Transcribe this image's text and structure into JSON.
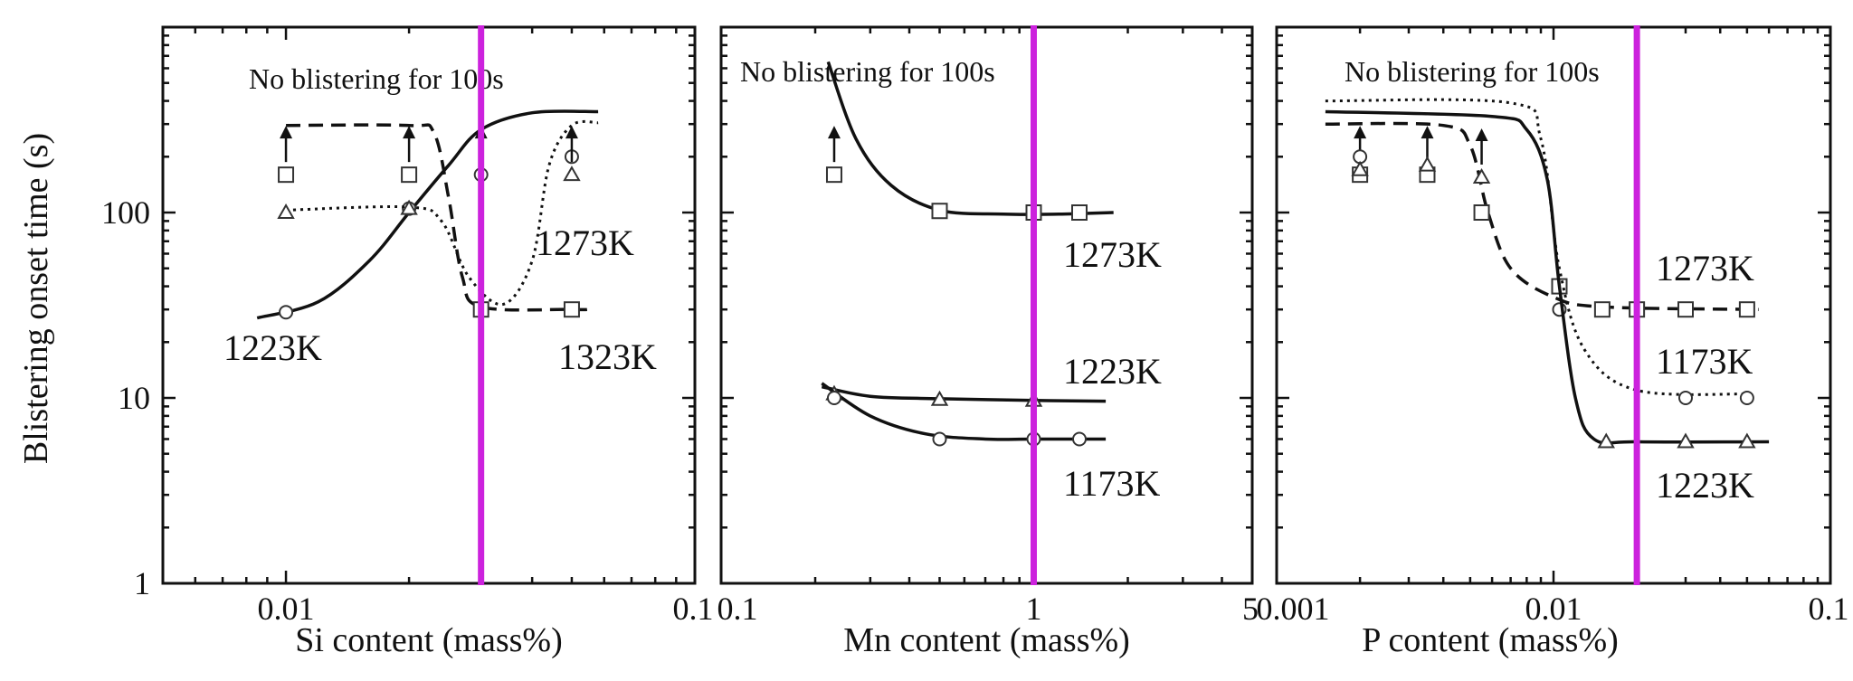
{
  "figure": {
    "y_axis_label": "Blistering onset time (s)",
    "y_ticks": [
      "1",
      "10",
      "100"
    ]
  },
  "chart_data": [
    {
      "type": "line",
      "xscale": "log",
      "yscale": "log",
      "xlabel": "Si content (mass%)",
      "ylabel": "Blistering onset time (s)",
      "xlim": [
        0.005,
        0.1
      ],
      "ylim": [
        1,
        1000
      ],
      "x_ticks": [
        "0.01",
        "0.1"
      ],
      "annotation": "No blistering for 100s",
      "vline_x": 0.03,
      "vline_color": "#cc22dd",
      "series": [
        {
          "name": "1223K",
          "marker": "circle",
          "line": "solid",
          "points": [
            [
              0.01,
              29
            ],
            [
              0.02,
              105
            ],
            [
              0.03,
              160
            ],
            [
              0.05,
              200
            ]
          ],
          "arrows_up_at": [
            0.03
          ],
          "curve": [
            [
              0.0085,
              27
            ],
            [
              0.012,
              33
            ],
            [
              0.016,
              55
            ],
            [
              0.02,
              100
            ],
            [
              0.025,
              180
            ],
            [
              0.03,
              280
            ],
            [
              0.04,
              345
            ],
            [
              0.058,
              350
            ]
          ]
        },
        {
          "name": "1273K",
          "marker": "triangle",
          "line": "dotted",
          "points": [
            [
              0.01,
              100
            ],
            [
              0.02,
              105
            ],
            [
              0.05,
              160
            ]
          ],
          "arrows_up_at": [
            0.05
          ],
          "curve": [
            [
              0.01,
              103
            ],
            [
              0.02,
              107
            ],
            [
              0.024,
              90
            ],
            [
              0.028,
              45
            ],
            [
              0.034,
              32
            ],
            [
              0.04,
              55
            ],
            [
              0.044,
              180
            ],
            [
              0.05,
              295
            ],
            [
              0.058,
              305
            ]
          ]
        },
        {
          "name": "1323K",
          "marker": "square",
          "line": "dashed",
          "points": [
            [
              0.01,
              160
            ],
            [
              0.02,
              160
            ],
            [
              0.03,
              30
            ],
            [
              0.05,
              30
            ]
          ],
          "arrows_up_at": [
            0.01,
            0.02
          ],
          "curve": [
            [
              0.01,
              295
            ],
            [
              0.02,
              295
            ],
            [
              0.023,
              270
            ],
            [
              0.025,
              120
            ],
            [
              0.027,
              45
            ],
            [
              0.03,
              31
            ],
            [
              0.05,
              30
            ],
            [
              0.055,
              30
            ]
          ]
        }
      ],
      "series_labels": [
        "1273K",
        "1323K",
        "1223K"
      ]
    },
    {
      "type": "line",
      "xscale": "log",
      "yscale": "log",
      "xlabel": "Mn content (mass%)",
      "xlim": [
        0.1,
        5
      ],
      "ylim": [
        1,
        1000
      ],
      "x_ticks": [
        "0.1",
        "1",
        "5"
      ],
      "annotation": "No blistering for 100s",
      "vline_x": 1,
      "vline_color": "#cc22dd",
      "series": [
        {
          "name": "1273K",
          "marker": "square",
          "line": "solid",
          "points": [
            [
              0.23,
              160
            ],
            [
              0.5,
              102
            ],
            [
              1.0,
              100
            ],
            [
              1.4,
              100
            ]
          ],
          "arrows_up_at": [
            0.23
          ],
          "curve": [
            [
              0.22,
              650
            ],
            [
              0.27,
              250
            ],
            [
              0.35,
              140
            ],
            [
              0.5,
              103
            ],
            [
              0.8,
              98
            ],
            [
              1.2,
              98
            ],
            [
              1.8,
              100
            ]
          ]
        },
        {
          "name": "1223K",
          "marker": "triangle",
          "line": "solid",
          "points": [
            [
              0.23,
              10.5
            ],
            [
              0.5,
              9.8
            ],
            [
              1.0,
              9.7
            ]
          ],
          "arrows_up_at": [],
          "curve": [
            [
              0.21,
              11.5
            ],
            [
              0.3,
              10.2
            ],
            [
              0.5,
              9.9
            ],
            [
              1.0,
              9.7
            ],
            [
              1.7,
              9.6
            ]
          ]
        },
        {
          "name": "1173K",
          "marker": "circle",
          "line": "solid",
          "points": [
            [
              0.23,
              10
            ],
            [
              0.5,
              6
            ],
            [
              1.0,
              6
            ],
            [
              1.4,
              6
            ]
          ],
          "arrows_up_at": [],
          "curve": [
            [
              0.21,
              12
            ],
            [
              0.3,
              8
            ],
            [
              0.45,
              6.4
            ],
            [
              0.7,
              6
            ],
            [
              1.0,
              6
            ],
            [
              1.7,
              6
            ]
          ]
        }
      ],
      "series_labels": [
        "1273K",
        "1223K",
        "1173K"
      ]
    },
    {
      "type": "line",
      "xscale": "log",
      "yscale": "log",
      "xlabel": "P content (mass%)",
      "xlim": [
        0.001,
        0.1
      ],
      "ylim": [
        1,
        1000
      ],
      "x_ticks": [
        "0.001",
        "0.01",
        "0.1"
      ],
      "annotation": "No blistering for 100s",
      "vline_x": 0.02,
      "vline_color": "#cc22dd",
      "series": [
        {
          "name": "1273K",
          "marker": "square",
          "line": "dashed",
          "points": [
            [
              0.002,
              160
            ],
            [
              0.0035,
              160
            ],
            [
              0.0055,
              100
            ],
            [
              0.0105,
              40
            ],
            [
              0.015,
              30
            ],
            [
              0.02,
              30
            ],
            [
              0.03,
              30
            ],
            [
              0.05,
              30
            ]
          ],
          "arrows_up_at": [
            0.002,
            0.0035
          ],
          "curve": [
            [
              0.0015,
              300
            ],
            [
              0.004,
              295
            ],
            [
              0.005,
              230
            ],
            [
              0.0058,
              100
            ],
            [
              0.007,
              50
            ],
            [
              0.01,
              35
            ],
            [
              0.015,
              31
            ],
            [
              0.055,
              30
            ]
          ]
        },
        {
          "name": "1173K",
          "marker": "circle",
          "line": "dotted",
          "points": [
            [
              0.002,
              200
            ],
            [
              0.0105,
              30
            ],
            [
              0.03,
              10
            ],
            [
              0.05,
              10
            ]
          ],
          "arrows_up_at": [],
          "curve": [
            [
              0.0015,
              400
            ],
            [
              0.007,
              390
            ],
            [
              0.009,
              250
            ],
            [
              0.0105,
              50
            ],
            [
              0.013,
              18
            ],
            [
              0.02,
              11
            ],
            [
              0.05,
              10.5
            ]
          ]
        },
        {
          "name": "1223K",
          "marker": "triangle",
          "line": "solid",
          "points": [
            [
              0.002,
              170
            ],
            [
              0.0035,
              180
            ],
            [
              0.0055,
              155
            ],
            [
              0.0155,
              5.8
            ],
            [
              0.03,
              5.8
            ],
            [
              0.05,
              5.8
            ]
          ],
          "arrows_up_at": [
            0.0055
          ],
          "curve": [
            [
              0.0015,
              350
            ],
            [
              0.006,
              330
            ],
            [
              0.008,
              280
            ],
            [
              0.0095,
              150
            ],
            [
              0.0105,
              40
            ],
            [
              0.012,
              10
            ],
            [
              0.014,
              6
            ],
            [
              0.02,
              5.8
            ],
            [
              0.06,
              5.8
            ]
          ]
        }
      ],
      "series_labels": [
        "1273K",
        "1173K",
        "1223K"
      ]
    }
  ]
}
